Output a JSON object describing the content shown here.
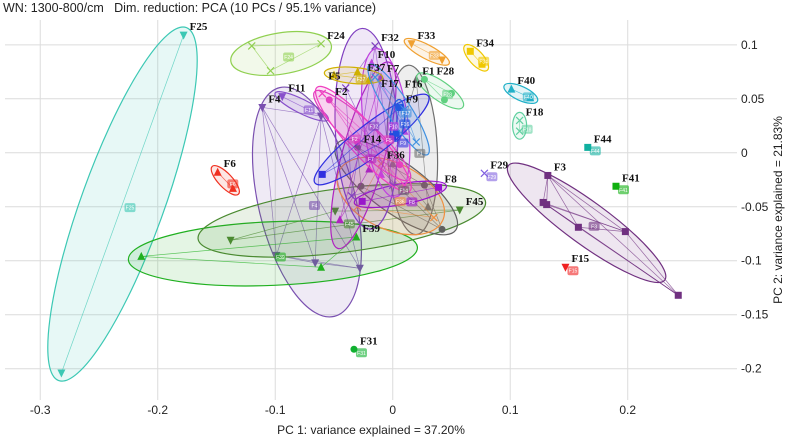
{
  "header": {
    "title": "WN: 1300-800/cm   Dim. reduction: PCA (10 PCs / 95.1% variance)"
  },
  "chart_data": {
    "type": "scatter",
    "xlabel": "PC 1: variance explained = 37.20%",
    "ylabel": "PC 2: variance explained = 21.83%",
    "xlim": [
      -0.33,
      0.293
    ],
    "ylim": [
      -0.229,
      0.123
    ],
    "xticks": [
      -0.3,
      -0.2,
      -0.1,
      0,
      0.1,
      0.2
    ],
    "xtick_labels": [
      "-0.3",
      "-0.2",
      "-0.1",
      "0",
      "0.1",
      "0.2"
    ],
    "yticks": [
      0.1,
      0.05,
      0,
      -0.05,
      -0.1,
      -0.15,
      -0.2
    ],
    "ytick_labels": [
      "0.1",
      "0.05",
      "0",
      "-0.05",
      "-0.1",
      "-0.15",
      "-0.2"
    ],
    "grid": true,
    "groups": [
      {
        "name": "F25",
        "color": "#3cc8b4",
        "marker": "tri-down",
        "points": [
          [
            -0.178,
            0.109
          ],
          [
            -0.282,
            -0.204
          ]
        ]
      },
      {
        "name": "F24",
        "color": "#90d050",
        "marker": "x",
        "points": [
          [
            -0.12,
            0.099
          ],
          [
            -0.061,
            0.101
          ],
          [
            -0.104,
            0.076
          ]
        ]
      },
      {
        "name": "F6",
        "color": "#f03020",
        "marker": "tri-up",
        "points": [
          [
            -0.149,
            -0.018
          ],
          [
            -0.136,
            -0.033
          ]
        ]
      },
      {
        "name": "F11",
        "color": "#8a50d0",
        "marker": "tri-down",
        "points": [
          [
            -0.094,
            0.052
          ],
          [
            -0.061,
            0.034
          ]
        ]
      },
      {
        "name": "F4",
        "color": "#7a50b0",
        "marker": "tri-down",
        "points": [
          [
            -0.111,
            0.042
          ],
          [
            -0.061,
            0.034
          ],
          [
            -0.099,
            -0.095
          ],
          [
            -0.066,
            -0.102
          ],
          [
            -0.028,
            -0.107
          ]
        ]
      },
      {
        "name": "F39",
        "color": "#20b020",
        "marker": "tri-up",
        "points": [
          [
            -0.214,
            -0.096
          ],
          [
            -0.061,
            -0.106
          ],
          [
            -0.031,
            -0.078
          ]
        ]
      },
      {
        "name": "F45",
        "color": "#4a8a30",
        "marker": "tri-down",
        "points": [
          [
            -0.138,
            -0.081
          ],
          [
            -0.049,
            -0.054
          ],
          [
            0.057,
            -0.053
          ]
        ]
      },
      {
        "name": "F14",
        "color": "#606060",
        "marker": "circle",
        "points": [
          [
            -0.027,
            -0.031
          ],
          [
            0.042,
            -0.071
          ],
          [
            0.027,
            -0.03
          ],
          [
            -0.03,
            0.005
          ]
        ]
      },
      {
        "name": "F1",
        "color": "#707070",
        "marker": "tri-up",
        "points": [
          [
            0.02,
            0.068
          ],
          [
            0.0,
            -0.01
          ],
          [
            0.03,
            -0.05
          ]
        ]
      },
      {
        "name": "F36",
        "color": "#f09040",
        "marker": "x",
        "points": [
          [
            -0.01,
            -0.01
          ],
          [
            0.035,
            -0.06
          ],
          [
            -0.03,
            -0.05
          ]
        ]
      },
      {
        "name": "F8",
        "color": "#9a10d0",
        "marker": "square",
        "points": [
          [
            0.039,
            -0.032
          ],
          [
            -0.026,
            -0.045
          ]
        ]
      },
      {
        "name": "F7",
        "color": "#b020c0",
        "marker": "tri-up",
        "points": [
          [
            -0.045,
            -0.062
          ],
          [
            -0.01,
            0.07
          ],
          [
            -0.02,
            -0.015
          ]
        ]
      },
      {
        "name": "F3",
        "color": "#703080",
        "marker": "square",
        "points": [
          [
            0.132,
            -0.021
          ],
          [
            0.128,
            -0.046
          ],
          [
            0.131,
            -0.048
          ],
          [
            0.158,
            -0.069
          ],
          [
            0.198,
            -0.073
          ],
          [
            0.243,
            -0.132
          ]
        ]
      },
      {
        "name": "F15",
        "color": "#f02020",
        "marker": "tri-down",
        "points": [
          [
            0.147,
            -0.106
          ]
        ]
      },
      {
        "name": "F41",
        "color": "#10b010",
        "marker": "square",
        "points": [
          [
            0.19,
            -0.031
          ]
        ]
      },
      {
        "name": "F44",
        "color": "#10b0a0",
        "marker": "square",
        "points": [
          [
            0.166,
            0.005
          ]
        ]
      },
      {
        "name": "F40",
        "color": "#20b0c8",
        "marker": "tri-up",
        "points": [
          [
            0.101,
            0.059
          ],
          [
            0.117,
            0.051
          ]
        ]
      },
      {
        "name": "F18",
        "color": "#60d0a0",
        "marker": "x",
        "points": [
          [
            0.108,
            0.03
          ],
          [
            0.108,
            0.02
          ]
        ]
      },
      {
        "name": "F34",
        "color": "#f0c800",
        "marker": "square",
        "points": [
          [
            0.066,
            0.094
          ],
          [
            0.076,
            0.082
          ]
        ]
      },
      {
        "name": "F33",
        "color": "#f0a030",
        "marker": "tri-down",
        "points": [
          [
            0.016,
            0.101
          ],
          [
            0.042,
            0.086
          ]
        ]
      },
      {
        "name": "F29",
        "color": "#8060e0",
        "marker": "x",
        "points": [
          [
            0.078,
            -0.019
          ]
        ]
      },
      {
        "name": "F31",
        "color": "#10b030",
        "marker": "circle",
        "points": [
          [
            -0.033,
            -0.182
          ]
        ]
      },
      {
        "name": "F32",
        "color": "#8040c0",
        "marker": "x",
        "points": [
          [
            -0.015,
            0.099
          ],
          [
            -0.04,
            0.06
          ],
          [
            0.0,
            -0.03
          ],
          [
            -0.035,
            -0.04
          ]
        ]
      },
      {
        "name": "F10",
        "color": "#c040e0",
        "marker": "tri-up",
        "points": [
          [
            -0.018,
            0.083
          ],
          [
            0.01,
            0.02
          ],
          [
            -0.01,
            -0.02
          ]
        ]
      },
      {
        "name": "F37",
        "color": "#d0b000",
        "marker": "tri-up",
        "points": [
          [
            -0.05,
            0.072
          ],
          [
            -0.03,
            0.075
          ],
          [
            -0.02,
            0.068
          ]
        ]
      },
      {
        "name": "F28",
        "color": "#60d080",
        "marker": "circle",
        "points": [
          [
            0.027,
            0.068
          ],
          [
            0.044,
            0.049
          ],
          [
            0.05,
            0.055
          ]
        ]
      },
      {
        "name": "F2",
        "color": "#e040c0",
        "marker": "circle",
        "points": [
          [
            -0.054,
            0.049
          ],
          [
            0.006,
            -0.011
          ],
          [
            -0.03,
            0.01
          ]
        ]
      },
      {
        "name": "F5",
        "color": "#f040c0",
        "marker": "x",
        "points": [
          [
            -0.06,
            0.055
          ],
          [
            0.01,
            -0.03
          ]
        ]
      },
      {
        "name": "F9",
        "color": "#3030e0",
        "marker": "square",
        "points": [
          [
            -0.06,
            -0.02
          ],
          [
            0.006,
            0.042
          ],
          [
            0.0,
            0.015
          ]
        ]
      },
      {
        "name": "F16",
        "color": "#2050e0",
        "marker": "square",
        "points": [
          [
            0.005,
            0.042
          ],
          [
            0.003,
            0.018
          ]
        ]
      },
      {
        "name": "F17",
        "color": "#4090e0",
        "marker": "x",
        "points": [
          [
            0.02,
            0.01
          ],
          [
            -0.015,
            0.07
          ],
          [
            0.01,
            0.04
          ]
        ]
      }
    ]
  }
}
